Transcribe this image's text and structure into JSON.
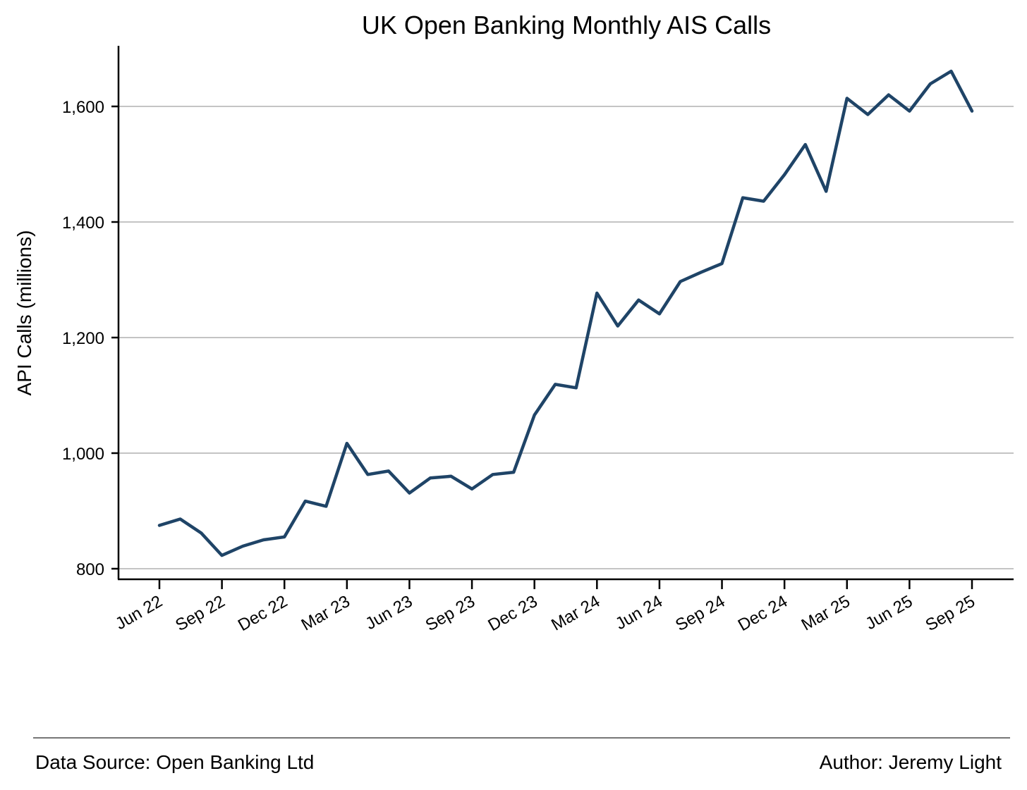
{
  "chart_data": {
    "type": "line",
    "title": "UK Open Banking Monthly AIS Calls",
    "xlabel": "",
    "ylabel": "API Calls (millions)",
    "ylim": [
      790,
      1705
    ],
    "yticks": [
      800,
      1000,
      1200,
      1400,
      1600
    ],
    "ytick_labels": [
      "800",
      "1,000",
      "1,200",
      "1,400",
      "1,600"
    ],
    "grid": "horizontal",
    "legend": "none",
    "line_color": "#1f4467",
    "x": [
      "Jun 22",
      "Jul 22",
      "Aug 22",
      "Sep 22",
      "Oct 22",
      "Nov 22",
      "Dec 22",
      "Jan 23",
      "Feb 23",
      "Mar 23",
      "Apr 23",
      "May 23",
      "Jun 23",
      "Jul 23",
      "Aug 23",
      "Sep 23",
      "Oct 23",
      "Nov 23",
      "Dec 23",
      "Jan 24",
      "Feb 24",
      "Mar 24",
      "Apr 24",
      "May 24",
      "Jun 24",
      "Jul 24",
      "Aug 24",
      "Sep 24",
      "Oct 24",
      "Nov 24",
      "Dec 24",
      "Jan 25",
      "Feb 25",
      "Mar 25",
      "Apr 25",
      "May 25",
      "Jun 25",
      "Jul 25",
      "Aug 25",
      "Sep 25"
    ],
    "xtick_labels": [
      "Jun 22",
      "Sep 22",
      "Dec 22",
      "Mar 23",
      "Jun 23",
      "Sep 23",
      "Dec 23",
      "Mar 24",
      "Jun 24",
      "Sep 24",
      "Dec 24",
      "Mar 25",
      "Jun 25",
      "Sep 25"
    ],
    "series": [
      {
        "values": [
          875,
          886,
          862,
          823,
          839,
          850,
          855,
          917,
          908,
          1017,
          963,
          969,
          931,
          957,
          960,
          938,
          963,
          967,
          1066,
          1119,
          1113,
          1277,
          1220,
          1265,
          1241,
          1297,
          1313,
          1328,
          1442,
          1436,
          1482,
          1534,
          1453,
          1614,
          1586,
          1620,
          1592,
          1639,
          1661,
          1592
        ]
      }
    ]
  },
  "footer": {
    "source": "Data Source: Open Banking Ltd",
    "author": "Author: Jeremy Light"
  }
}
